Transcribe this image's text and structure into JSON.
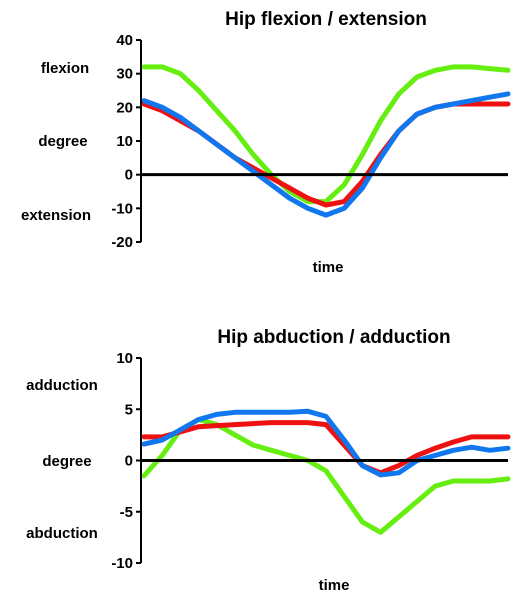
{
  "chart_data": [
    {
      "type": "line",
      "title": "Hip flexion / extension",
      "xlabel": "time",
      "ylabel": "degree",
      "ylabel_top": "flexion",
      "ylabel_bottom": "extension",
      "ylim": [
        -20,
        40
      ],
      "yticks": [
        -20,
        -10,
        0,
        10,
        20,
        30,
        40
      ],
      "ytick_labels": [
        "-20",
        "-10",
        "0",
        "10",
        "20",
        "30",
        "40"
      ],
      "grid": false,
      "zero_line": true,
      "x": [
        0,
        5,
        10,
        15,
        20,
        25,
        30,
        35,
        40,
        45,
        50,
        55,
        60,
        65,
        70,
        75,
        80,
        85,
        90,
        95,
        100
      ],
      "series": [
        {
          "color": "#66ee11",
          "values": [
            32,
            32,
            30,
            25,
            19,
            13,
            6,
            0,
            -5,
            -8,
            -8,
            -3,
            6,
            16,
            24,
            29,
            31,
            32,
            32,
            31.5,
            31
          ]
        },
        {
          "color": "#ee1111",
          "values": [
            21,
            19,
            16,
            13,
            9,
            5,
            2,
            -1,
            -4,
            -7,
            -9,
            -8,
            -2,
            6,
            13,
            18,
            20,
            21,
            21,
            21,
            21
          ]
        },
        {
          "color": "#1177ee",
          "values": [
            22,
            20,
            17,
            13,
            9,
            5,
            1,
            -3,
            -7,
            -10,
            -12,
            -10,
            -4,
            5,
            13,
            18,
            20,
            21,
            22,
            23,
            24
          ]
        }
      ]
    },
    {
      "type": "line",
      "title": "Hip abduction / adduction",
      "xlabel": "time",
      "ylabel": "degree",
      "ylabel_top": "adduction",
      "ylabel_bottom": "abduction",
      "ylim": [
        -10,
        10
      ],
      "yticks": [
        -10,
        -5,
        0,
        5,
        10
      ],
      "ytick_labels": [
        "-10",
        "-5",
        "0",
        "5",
        "10"
      ],
      "grid": false,
      "zero_line": true,
      "x": [
        0,
        5,
        10,
        15,
        20,
        25,
        30,
        35,
        40,
        45,
        50,
        55,
        60,
        65,
        70,
        75,
        80,
        85,
        90,
        95,
        100
      ],
      "series": [
        {
          "color": "#66ee11",
          "values": [
            -1.5,
            0.5,
            3,
            4,
            3.5,
            2.5,
            1.5,
            1,
            0.5,
            0,
            -1,
            -3.5,
            -6,
            -7,
            -5.5,
            -4,
            -2.5,
            -2,
            -2,
            -2,
            -1.8
          ]
        },
        {
          "color": "#ee1111",
          "values": [
            2.3,
            2.3,
            2.8,
            3.3,
            3.4,
            3.5,
            3.6,
            3.7,
            3.7,
            3.7,
            3.5,
            1.5,
            -0.5,
            -1.2,
            -0.5,
            0.5,
            1.2,
            1.8,
            2.3,
            2.3,
            2.3
          ]
        },
        {
          "color": "#1177ee",
          "values": [
            1.6,
            2,
            3,
            4,
            4.5,
            4.7,
            4.7,
            4.7,
            4.7,
            4.8,
            4.3,
            2,
            -0.5,
            -1.4,
            -1.2,
            0,
            0.5,
            1,
            1.3,
            1,
            1.2
          ]
        }
      ]
    }
  ]
}
